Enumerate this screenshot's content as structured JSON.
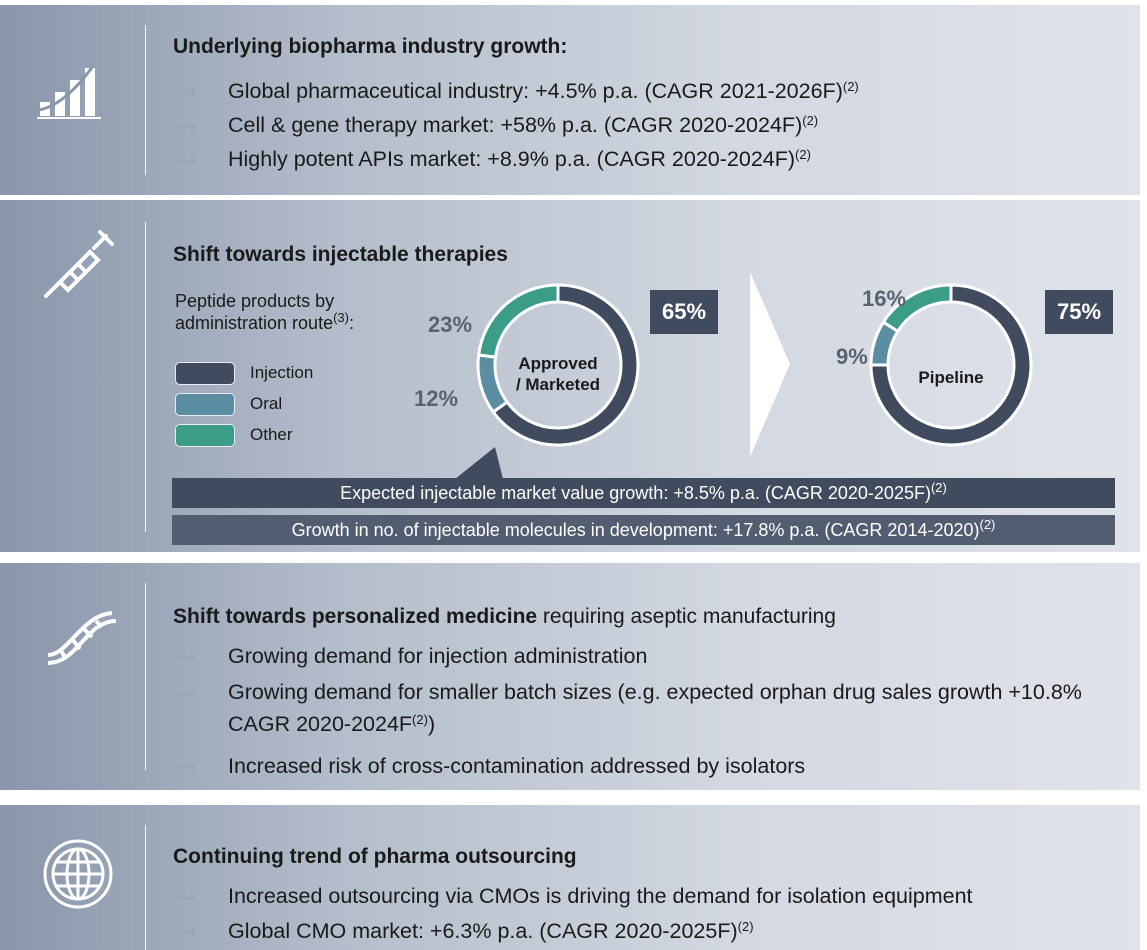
{
  "panels": [
    {
      "title": "Underlying biopharma industry growth:",
      "bullets": [
        {
          "text": "Global pharmaceutical industry: +4.5% p.a. (CAGR 2021-2026F)",
          "sup": "(2)"
        },
        {
          "text": "Cell & gene therapy market: +58% p.a. (CAGR 2020-2024F)",
          "sup": "(2)"
        },
        {
          "text": "Highly potent APIs market: +8.9% p.a. (CAGR 2020-2024F)",
          "sup": "(2)"
        }
      ]
    },
    {
      "title": "Shift towards injectable therapies",
      "legend_title": [
        "Peptide products by",
        "administration route"
      ],
      "legend_title_sup": "(3)",
      "legend_title_end": ":",
      "banners": [
        {
          "text": "Expected injectable market value growth: +8.5% p.a. (CAGR 2020-2025F)",
          "sup": "(2)"
        },
        {
          "text": "Growth in no. of injectable molecules in development: +17.8% p.a. (CAGR 2014-2020)",
          "sup": "(2)"
        }
      ]
    },
    {
      "title": "Shift towards personalized medicine",
      "title_rest": " requiring aseptic manufacturing",
      "bullets": [
        {
          "text": "Growing demand for injection administration"
        },
        {
          "text": "Growing demand for smaller batch sizes (e.g. expected orphan drug sales growth +10.8% CAGR 2020-2024F",
          "sup": "(2)",
          "after": ")"
        },
        {
          "text": "Increased risk of cross-contamination addressed by isolators"
        }
      ]
    },
    {
      "title": "Continuing trend of pharma outsourcing",
      "bullets": [
        {
          "text": "Increased outsourcing via CMOs is driving the demand for isolation equipment"
        },
        {
          "text": "Global CMO market: +6.3% p.a. (CAGR 2020-2025F)",
          "sup": "(2)"
        }
      ]
    }
  ],
  "chart_data": [
    {
      "type": "pie",
      "center_label": [
        "Approved",
        "/ Marketed"
      ],
      "categories": [
        "Injection",
        "Oral",
        "Other"
      ],
      "colors": [
        "#414b5f",
        "#5b8ea3",
        "#3b9c88"
      ],
      "values": [
        65,
        12,
        23
      ],
      "value_labels": [
        "65%",
        "12%",
        "23%"
      ]
    },
    {
      "type": "pie",
      "center_label": [
        "Pipeline"
      ],
      "categories": [
        "Injection",
        "Oral",
        "Other"
      ],
      "colors": [
        "#414b5f",
        "#5b8ea3",
        "#3b9c88"
      ],
      "values": [
        75,
        9,
        16
      ],
      "value_labels": [
        "75%",
        "9%",
        "16%"
      ]
    }
  ]
}
